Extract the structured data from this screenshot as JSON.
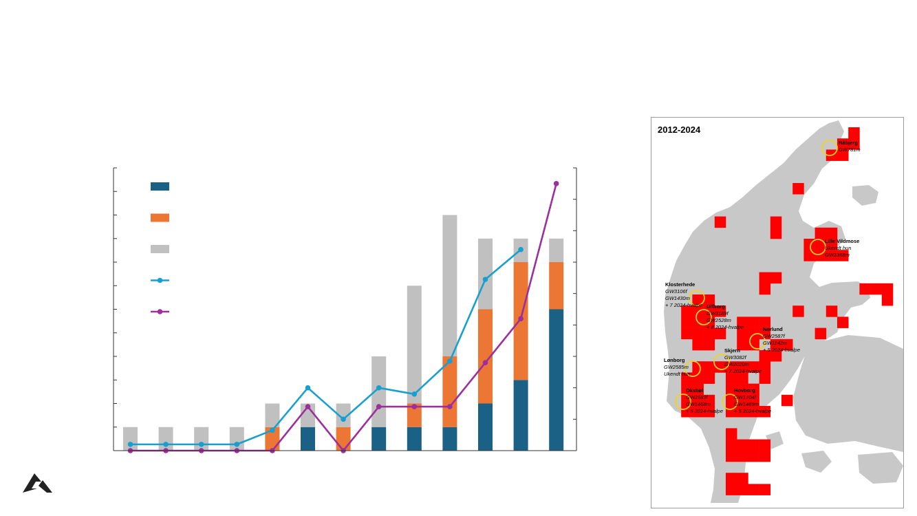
{
  "chart_data": {
    "type": "bar",
    "stacked": true,
    "categories": [
      "2012",
      "2013",
      "2014",
      "2015",
      "2016",
      "2017",
      "2018",
      "2019",
      "2020",
      "2021",
      "2022",
      "2023",
      "2024"
    ],
    "categories_printed": false,
    "ylim_left": [
      0,
      12
    ],
    "ylim_right": [
      0,
      9
    ],
    "grid": false,
    "legend_position": "top-left",
    "series": [
      {
        "kind": "bar",
        "color": "#1a6185",
        "values": [
          0,
          0,
          0,
          0,
          0,
          1,
          0,
          1,
          1,
          1,
          2,
          3,
          6
        ]
      },
      {
        "kind": "bar",
        "color": "#ec7634",
        "values": [
          0,
          0,
          0,
          0,
          1,
          0,
          1,
          0,
          1,
          3,
          4,
          5,
          2
        ]
      },
      {
        "kind": "bar",
        "color": "#c0c0c0",
        "values": [
          1,
          1,
          1,
          1,
          1,
          1,
          1,
          3,
          5,
          6,
          3,
          1,
          1
        ]
      },
      {
        "kind": "line",
        "axis": "right",
        "color": "#17a0cf",
        "values": [
          0.2,
          0.2,
          0.2,
          0.2,
          0.65,
          2,
          1,
          2,
          1.8,
          2.85,
          5.45,
          6.4,
          null
        ]
      },
      {
        "kind": "line",
        "axis": "right",
        "color": "#9b2f9c",
        "values": [
          0,
          0,
          0,
          0,
          0,
          1.4,
          0,
          1.4,
          1.4,
          1.4,
          2.8,
          4.2,
          8.5
        ]
      }
    ]
  },
  "map": {
    "title": "2012-2024",
    "land_color": "#c8c8c8",
    "territory_color": "#ff0000",
    "marker_color": "#f2d21d",
    "territories": [
      {
        "name": "Råbjerg",
        "lines": [
          "GW781m"
        ]
      },
      {
        "name": "Lille Vildmose",
        "lines": [
          "Ukendt hun",
          "GW2368m"
        ]
      },
      {
        "name": "Klosterhede",
        "lines": [
          "GW3106f",
          "GW1430m",
          "+ 7 2024-hvalpe"
        ]
      },
      {
        "name": "Ulfborg",
        "lines": [
          "GW3189f",
          "GW2528m",
          "+ 8 2024-hvalpe"
        ]
      },
      {
        "name": "Nørlund",
        "lines": [
          "GW2587f",
          "GW1142m",
          "+ 5 2024-hvalpe"
        ]
      },
      {
        "name": "Skjern",
        "lines": [
          "GW3082f",
          "GW2020m",
          "+ 7 2024-hvalpe"
        ]
      },
      {
        "name": "Lønborg",
        "lines": [
          "GW2585m",
          "Ukendt hun"
        ]
      },
      {
        "name": "Oksbøl",
        "lines": [
          "GW2583f",
          "GW1468m",
          "+ 5 2024-hvalpe"
        ]
      },
      {
        "name": "Hovborg",
        "lines": [
          "GW1704f",
          "GW1469m",
          "+ 5 2024-hvalpe"
        ]
      }
    ]
  }
}
